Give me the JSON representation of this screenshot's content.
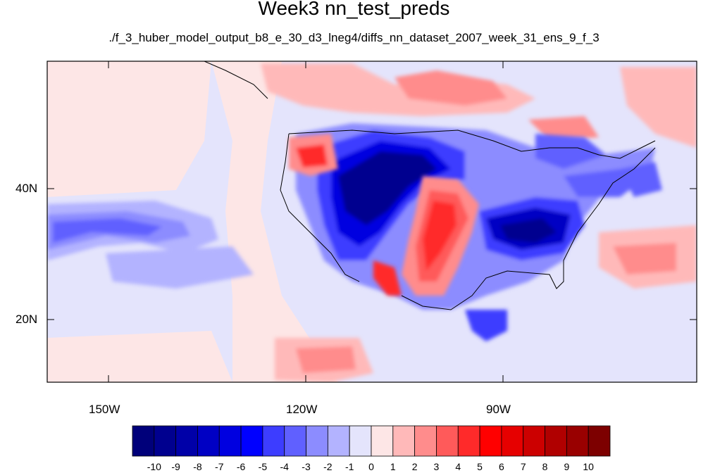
{
  "title": "Week3 nn_test_preds",
  "subtitle": "./f_3_huber_model_output_b8_e_30_d3_lneg4/diffs_nn_dataset_2007_week_31_ens_9_f_3",
  "x_ticks": [
    "150W",
    "120W",
    "90W"
  ],
  "y_ticks": [
    "40N",
    "20N"
  ],
  "colorbar": {
    "labels": [
      "-10",
      "-9",
      "-8",
      "-7",
      "-6",
      "-5",
      "-4",
      "-3",
      "-2",
      "-1",
      "0",
      "1",
      "2",
      "3",
      "4",
      "5",
      "6",
      "7",
      "8",
      "9",
      "10"
    ],
    "colors": [
      "#00007a",
      "#00008f",
      "#0000a8",
      "#0000c4",
      "#0000e0",
      "#0000ff",
      "#3d3dff",
      "#6060ff",
      "#8c8cff",
      "#b3b3ff",
      "#e4e4fc",
      "#fde6e6",
      "#ffb9b9",
      "#ff8c8c",
      "#ff5a5a",
      "#ff2a2a",
      "#ff0000",
      "#e60000",
      "#cc0000",
      "#b00000",
      "#990000",
      "#7d0000"
    ]
  }
}
